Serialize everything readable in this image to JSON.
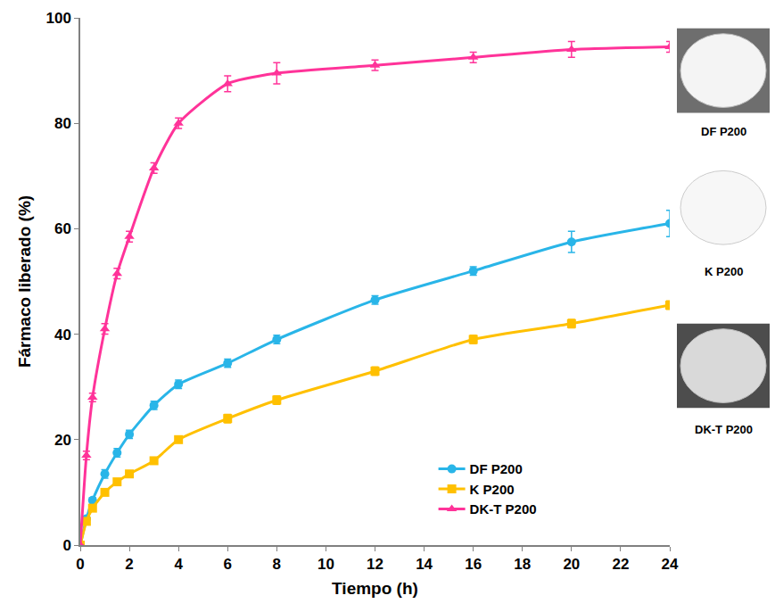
{
  "chart_data": {
    "type": "line",
    "x_label": "Tiempo (h)",
    "y_label": "Fármaco liberado (%)",
    "x": [
      0,
      0.25,
      0.5,
      1,
      1.5,
      2,
      3,
      4,
      6,
      8,
      12,
      16,
      20,
      24
    ],
    "series": [
      {
        "name": "DF P200",
        "color": "#29b5e8",
        "marker": "circle",
        "values": [
          0,
          5,
          8.5,
          13.5,
          17.5,
          21,
          26.5,
          30.5,
          34.5,
          39,
          46.5,
          52,
          57.5,
          61
        ],
        "errors": [
          0,
          0.5,
          0.5,
          0.8,
          0.8,
          0.8,
          0.8,
          0.8,
          0.8,
          0.8,
          0.8,
          0.8,
          2,
          2.5
        ]
      },
      {
        "name": "K P200",
        "color": "#ffc000",
        "marker": "square",
        "values": [
          0,
          4.5,
          7,
          10,
          12,
          13.5,
          16,
          20,
          24,
          27.5,
          33,
          39,
          42,
          45.5
        ],
        "errors": [
          0,
          0.5,
          0.5,
          0.5,
          0.5,
          0.5,
          0.5,
          0.5,
          0.8,
          0.8,
          0.8,
          0.8,
          0.8,
          0.8
        ]
      },
      {
        "name": "DK-T P200",
        "color": "#ff3399",
        "marker": "triangle-up",
        "values": [
          0,
          17,
          28,
          41,
          51.5,
          58.5,
          71.5,
          80,
          87.5,
          89.5,
          91,
          92.5,
          94,
          94.5
        ],
        "errors": [
          0,
          0.8,
          0.8,
          1,
          1,
          1,
          1,
          1,
          1.5,
          2,
          1,
          1,
          1.5,
          1
        ]
      }
    ],
    "xlim": [
      0,
      24
    ],
    "xticks": [
      0,
      2,
      4,
      6,
      8,
      10,
      12,
      14,
      16,
      18,
      20,
      22,
      24
    ],
    "ylim": [
      0,
      100
    ],
    "yticks": [
      0,
      20,
      40,
      60,
      80,
      100
    ],
    "grid": false,
    "legend": "lower right",
    "image_labels": [
      "DF P200",
      "K P200",
      "DK-T P200"
    ]
  }
}
